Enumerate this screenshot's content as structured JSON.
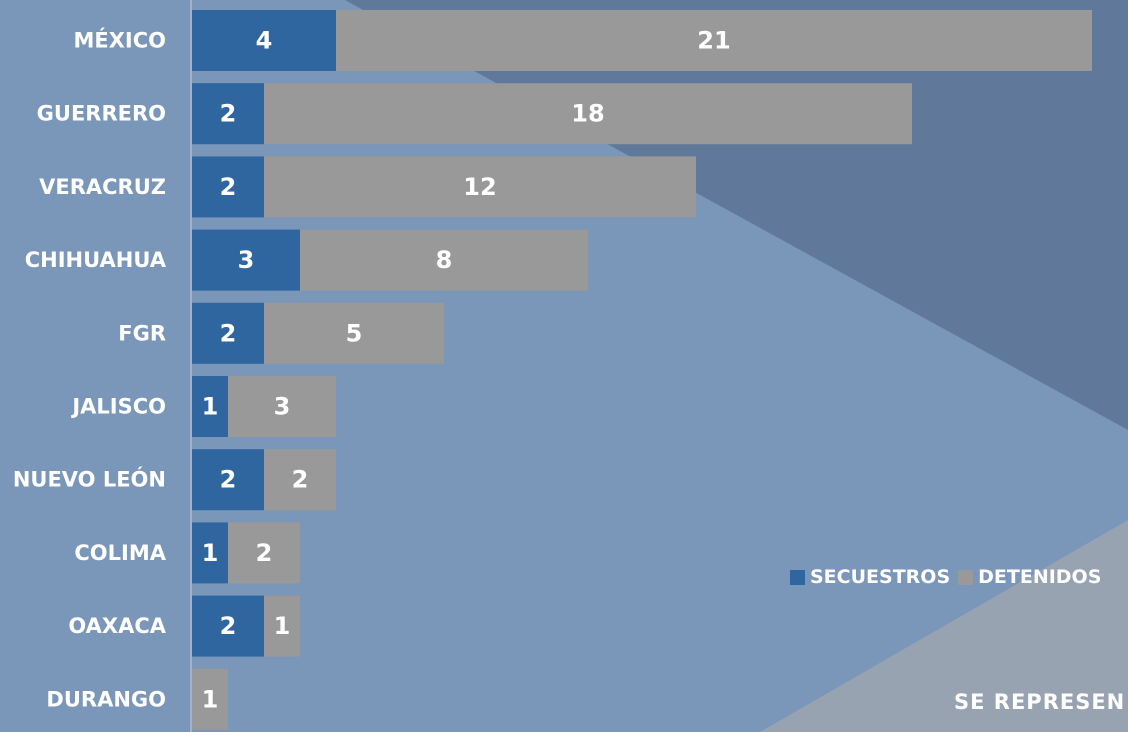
{
  "colors": {
    "background": "#7a96b8",
    "background_dark": "#60799b",
    "background_gray": "#98a3b2",
    "secuestros": "#2f66a0",
    "detenidos": "#999999",
    "text": "#ffffff"
  },
  "legend": {
    "secuestros": "SECUESTROS",
    "detenidos": "DETENIDOS"
  },
  "footer": {
    "text": "SE REPRESEN"
  },
  "chart_data": {
    "type": "bar",
    "orientation": "horizontal",
    "stacked": true,
    "categories": [
      "MÉXICO",
      "GUERRERO",
      "VERACRUZ",
      "CHIHUAHUA",
      "FGR",
      "JALISCO",
      "NUEVO LEÓN",
      "COLIMA",
      "OAXACA",
      "DURANGO"
    ],
    "series": [
      {
        "name": "SECUESTROS",
        "values": [
          4,
          2,
          2,
          3,
          2,
          1,
          2,
          1,
          2,
          0
        ]
      },
      {
        "name": "DETENIDOS",
        "values": [
          21,
          18,
          12,
          8,
          5,
          3,
          2,
          2,
          1,
          1
        ]
      }
    ],
    "xlim": [
      0,
      25
    ],
    "grid": false,
    "legend_position": "bottom-right"
  }
}
